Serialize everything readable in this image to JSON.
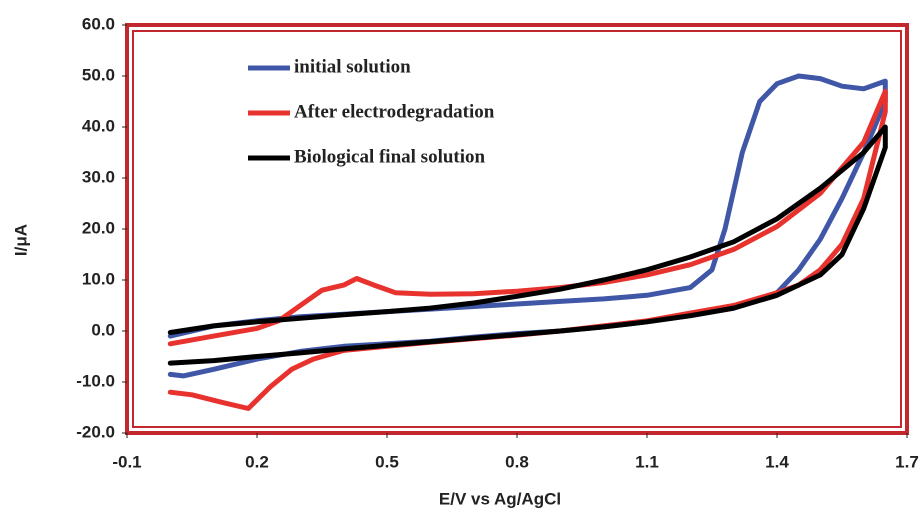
{
  "chart_data": {
    "type": "line",
    "xlabel": "E/V vs Ag/AgCl",
    "ylabel": "I/μA",
    "xlim": [
      -0.1,
      1.7
    ],
    "xticks": [
      -0.1,
      0.2,
      0.5,
      0.8,
      1.1,
      1.4,
      1.7
    ],
    "ylim": [
      -20,
      60
    ],
    "yticks": [
      {
        "value": -20,
        "label": "-20.0"
      },
      {
        "value": -10,
        "label": "-10.0"
      },
      {
        "value": 0,
        "label": "0.0"
      },
      {
        "value": 10,
        "label": "10.0"
      },
      {
        "value": 20,
        "label": "20.0"
      },
      {
        "value": 30,
        "label": "30.0"
      },
      {
        "value": 40,
        "label": "40.0"
      },
      {
        "value": 50,
        "label": "50.0"
      },
      {
        "value": 60,
        "label": "60.0"
      }
    ],
    "legend": "upper left",
    "frame_color": "#c1272d",
    "series": [
      {
        "name": "initial solution",
        "color": "#3f57a6",
        "x": [
          0,
          0.1,
          0.2,
          0.3,
          0.4,
          0.5,
          0.6,
          0.7,
          0.8,
          0.9,
          1.0,
          1.1,
          1.2,
          1.25,
          1.28,
          1.32,
          1.36,
          1.4,
          1.45,
          1.5,
          1.55,
          1.6,
          1.65,
          1.65,
          1.6,
          1.55,
          1.5,
          1.45,
          1.4,
          1.3,
          1.2,
          1.1,
          1.0,
          0.9,
          0.8,
          0.7,
          0.6,
          0.5,
          0.4,
          0.3,
          0.2,
          0.1,
          0.03,
          0
        ],
        "values": [
          -1,
          1,
          2,
          2.8,
          3.3,
          3.8,
          4.3,
          4.8,
          5.3,
          5.8,
          6.3,
          7,
          8.5,
          12,
          20,
          35,
          45,
          48.5,
          50,
          49.5,
          48,
          47.5,
          49,
          45,
          35,
          26,
          18,
          12,
          7.5,
          4.5,
          3,
          1.8,
          0.8,
          0,
          -0.5,
          -1.2,
          -2,
          -2.5,
          -3,
          -4,
          -5.5,
          -7.5,
          -8.8,
          -8.5
        ]
      },
      {
        "name": "After electrodegradation",
        "color": "#e8322e",
        "x": [
          0,
          0.1,
          0.2,
          0.25,
          0.3,
          0.35,
          0.4,
          0.43,
          0.47,
          0.52,
          0.6,
          0.7,
          0.8,
          0.9,
          1.0,
          1.1,
          1.2,
          1.3,
          1.4,
          1.5,
          1.6,
          1.65,
          1.65,
          1.6,
          1.55,
          1.5,
          1.45,
          1.4,
          1.3,
          1.2,
          1.1,
          1.0,
          0.9,
          0.8,
          0.7,
          0.6,
          0.5,
          0.4,
          0.33,
          0.28,
          0.23,
          0.18,
          0.12,
          0.05,
          0
        ],
        "values": [
          -2.5,
          -1,
          0.5,
          2,
          5,
          8,
          9,
          10.3,
          9,
          7.5,
          7.2,
          7.3,
          7.8,
          8.5,
          9.5,
          11,
          13,
          16,
          20.5,
          27,
          37,
          47,
          43,
          26,
          17,
          12,
          9,
          7.5,
          5,
          3.5,
          2,
          1,
          0,
          -0.8,
          -1.5,
          -2.2,
          -3,
          -3.8,
          -5.5,
          -7.5,
          -11,
          -15.2,
          -14,
          -12.5,
          -12
        ]
      },
      {
        "name": "Biological final solution",
        "color": "#000000",
        "x": [
          0,
          0.1,
          0.2,
          0.3,
          0.4,
          0.5,
          0.6,
          0.7,
          0.8,
          0.9,
          1.0,
          1.1,
          1.2,
          1.3,
          1.4,
          1.5,
          1.6,
          1.65,
          1.65,
          1.6,
          1.55,
          1.5,
          1.4,
          1.3,
          1.2,
          1.1,
          1.0,
          0.9,
          0.8,
          0.7,
          0.6,
          0.5,
          0.4,
          0.3,
          0.2,
          0.1,
          0
        ],
        "values": [
          -0.3,
          1,
          1.8,
          2.5,
          3.2,
          3.8,
          4.5,
          5.5,
          6.8,
          8.2,
          10,
          12,
          14.5,
          17.5,
          22,
          28,
          35,
          40,
          36,
          24,
          15,
          11,
          7,
          4.5,
          3,
          1.8,
          0.8,
          0,
          -0.7,
          -1.4,
          -2.1,
          -2.8,
          -3.5,
          -4.3,
          -5,
          -5.8,
          -6.3
        ]
      }
    ]
  }
}
